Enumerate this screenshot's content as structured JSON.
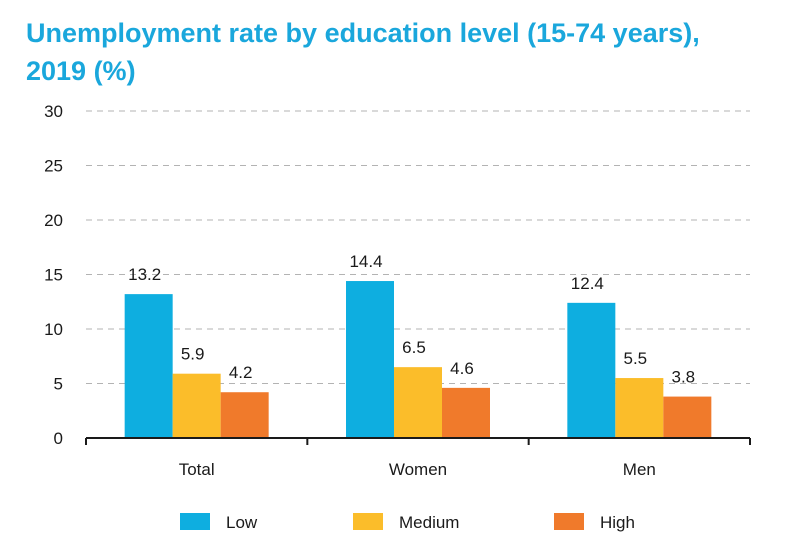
{
  "chart_data": {
    "type": "bar",
    "title": "Unemployment rate by education level (15-74 years), 2019 (%)",
    "categories": [
      "Total",
      "Women",
      "Men"
    ],
    "series": [
      {
        "name": "Low",
        "color": "#0eaee0",
        "values": [
          13.2,
          14.4,
          12.4
        ]
      },
      {
        "name": "Medium",
        "color": "#fbbd2a",
        "values": [
          5.9,
          6.5,
          5.5
        ]
      },
      {
        "name": "High",
        "color": "#f07a2b",
        "values": [
          4.2,
          4.6,
          3.8
        ]
      }
    ],
    "value_labels": [
      [
        "13.2",
        "14.4",
        "12.4"
      ],
      [
        "5.9",
        "6.5",
        "5.5"
      ],
      [
        "4.2",
        "4.6",
        "3.8"
      ]
    ],
    "yticks": [
      "0",
      "5",
      "10",
      "15",
      "20",
      "25",
      "30"
    ],
    "ylim": [
      0,
      30
    ],
    "ytick_step": 5,
    "xlabel": "",
    "ylabel": "",
    "grid": "dashed horizontal",
    "legend_position": "bottom"
  }
}
